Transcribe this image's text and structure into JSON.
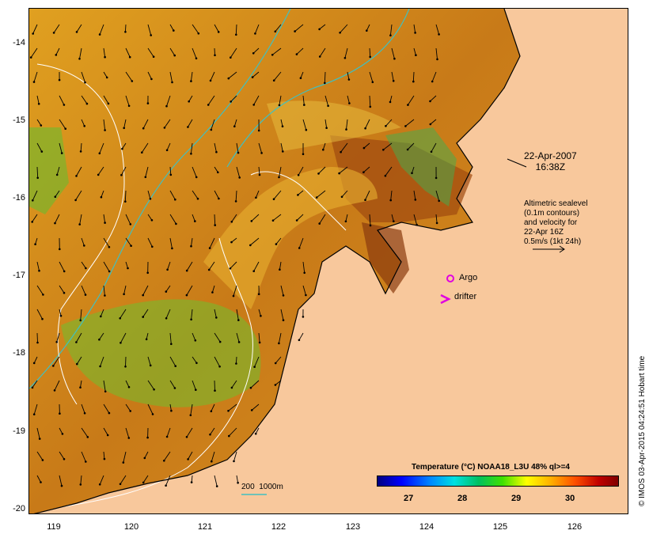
{
  "date_line": "22-Apr-2007",
  "time_line": "16:38Z",
  "altimetry_lines": [
    "Altimetric sealevel",
    "(0.1m contours)",
    "and velocity for",
    "22-Apr 16Z",
    "0.5m/s (1kt 24h)"
  ],
  "argo_label": "Argo",
  "drifter_label": "drifter",
  "depth_legend": "200  1000m",
  "legend_title": "Temperature (°C) NOAA18_L3U 48% ql>=4",
  "colorbar_labels": [
    "27",
    "28",
    "29",
    "30"
  ],
  "credit": "© IMOS 03-Apr-2015 04:24:51 Hobart time",
  "y_ticks": [
    "-14",
    "-15",
    "-16",
    "-17",
    "-18",
    "-19",
    "-20"
  ],
  "x_ticks": [
    "119",
    "120",
    "121",
    "122",
    "123",
    "124",
    "125",
    "126"
  ],
  "colors": {
    "land": "#f8c89c",
    "sst_base": "#d98a1a",
    "depth_contour": "#40c0c0",
    "argo": "#e000e0"
  }
}
